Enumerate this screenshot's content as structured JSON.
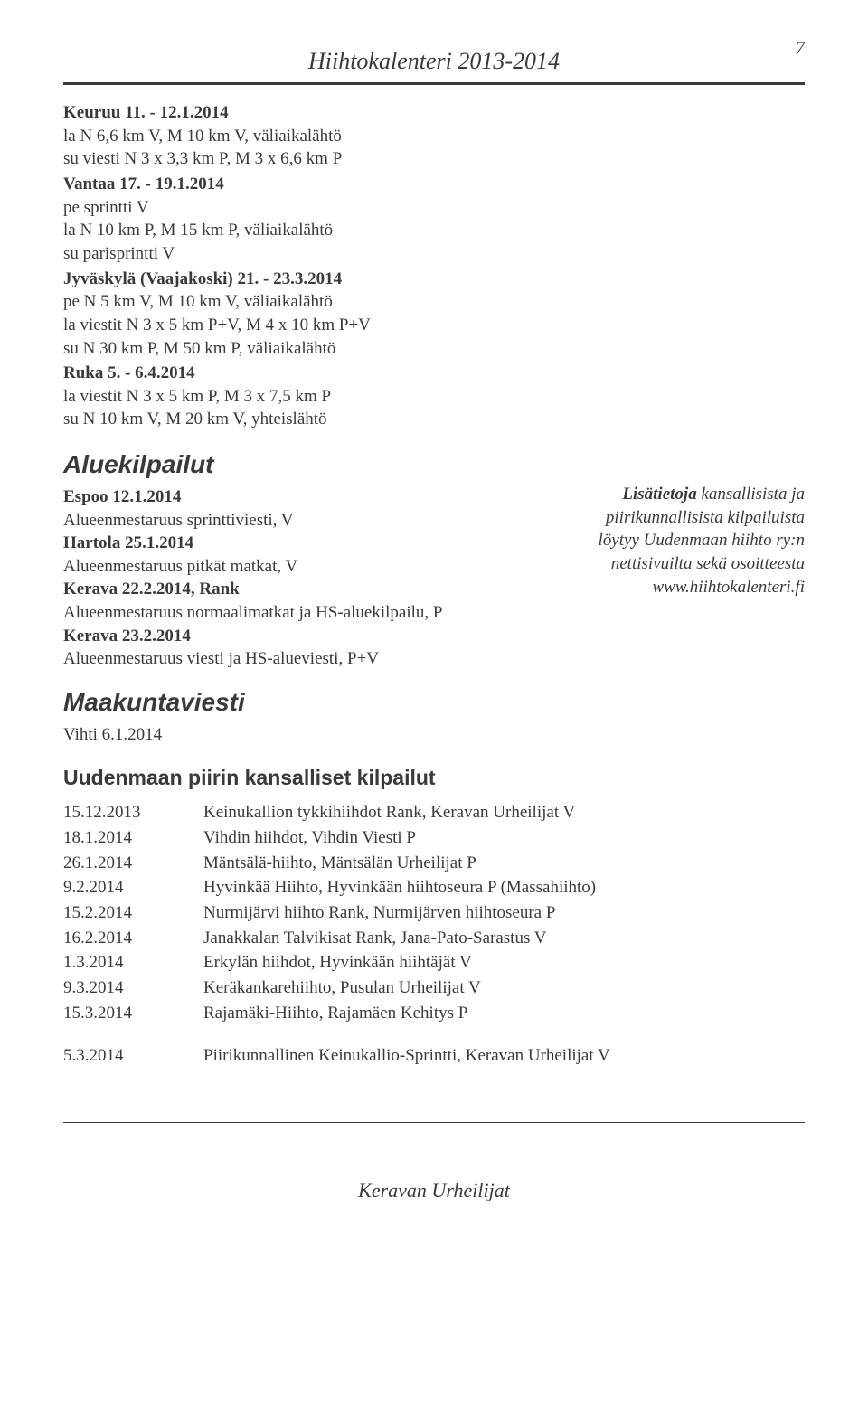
{
  "header": {
    "title": "Hiihtokalenteri 2013-2014",
    "page_number": "7"
  },
  "events": [
    {
      "title": "Keuruu 11. - 12.1.2014",
      "lines": [
        "la N 6,6 km V, M 10 km V, väliaikalähtö",
        "su viesti N 3 x 3,3 km P, M 3 x 6,6 km P"
      ]
    },
    {
      "title": "Vantaa 17. - 19.1.2014",
      "lines": [
        "pe sprintti V",
        "la N 10 km P, M 15 km P, väliaikalähtö",
        "su parisprintti V"
      ]
    },
    {
      "title": "Jyväskylä (Vaajakoski) 21. - 23.3.2014",
      "lines": [
        "pe N 5 km V, M 10 km V, väliaikalähtö",
        "la viestit N 3 x 5 km P+V, M 4 x 10 km P+V",
        "su N 30 km P, M 50 km P, väliaikalähtö"
      ]
    },
    {
      "title": "Ruka 5. - 6.4.2014",
      "lines": [
        "la viestit N 3 x 5 km P, M 3 x 7,5 km P",
        "su N 10 km V, M 20 km V, yhteislähtö"
      ]
    }
  ],
  "aluekilpailut": {
    "heading": "Aluekilpailut",
    "items": [
      {
        "title": "Espoo 12.1.2014",
        "lines": [
          "Alueenmestaruus sprinttiviesti, V"
        ]
      },
      {
        "title": "Hartola 25.1.2014",
        "lines": [
          "Alueenmestaruus pitkät matkat, V"
        ]
      },
      {
        "title": "Kerava 22.2.2014, Rank",
        "lines": [
          "Alueenmestaruus normaalimatkat ja HS-aluekilpailu, P"
        ]
      },
      {
        "title": "Kerava 23.2.2014",
        "lines": [
          "Alueenmestaruus viesti ja HS-alueviesti, P+V"
        ]
      }
    ]
  },
  "sidebox": {
    "lines": [
      "Lisätietoja kansallisista ja",
      "piirikunnallisista kilpailuista",
      "löytyy Uudenmaan hiihto ry:n",
      "nettisivuilta sekä osoitteesta",
      "www.hiihtokalenteri.fi"
    ]
  },
  "maakuntaviesti": {
    "heading": "Maakuntaviesti",
    "line": "Vihti 6.1.2014"
  },
  "uudenmaan": {
    "heading": "Uudenmaan piirin kansalliset kilpailut",
    "rows": [
      {
        "date": "15.12.2013",
        "desc": "Keinukallion tykkihiihdot Rank, Keravan Urheilijat V"
      },
      {
        "date": "18.1.2014",
        "desc": "Vihdin hiihdot, Vihdin Viesti P"
      },
      {
        "date": "26.1.2014",
        "desc": "Mäntsälä-hiihto, Mäntsälän Urheilijat P"
      },
      {
        "date": "9.2.2014",
        "desc": "Hyvinkää Hiihto, Hyvinkään hiihtoseura P (Massahiihto)"
      },
      {
        "date": "15.2.2014",
        "desc": "Nurmijärvi hiihto Rank, Nurmijärven hiihtoseura P"
      },
      {
        "date": "16.2.2014",
        "desc": "Janakkalan Talvikisat Rank, Jana-Pato-Sarastus V"
      },
      {
        "date": "1.3.2014",
        "desc": "Erkylän hiihdot, Hyvinkään hiihtäjät V"
      },
      {
        "date": "9.3.2014",
        "desc": "Keräkankarehiihto, Pusulan Urheilijat V"
      },
      {
        "date": "15.3.2014",
        "desc": "Rajamäki-Hiihto, Rajamäen Kehitys P"
      }
    ],
    "extra": {
      "date": "5.3.2014",
      "desc": "Piirikunnallinen Keinukallio-Sprintti, Keravan Urheilijat V"
    }
  },
  "footer": "Keravan Urheilijat"
}
